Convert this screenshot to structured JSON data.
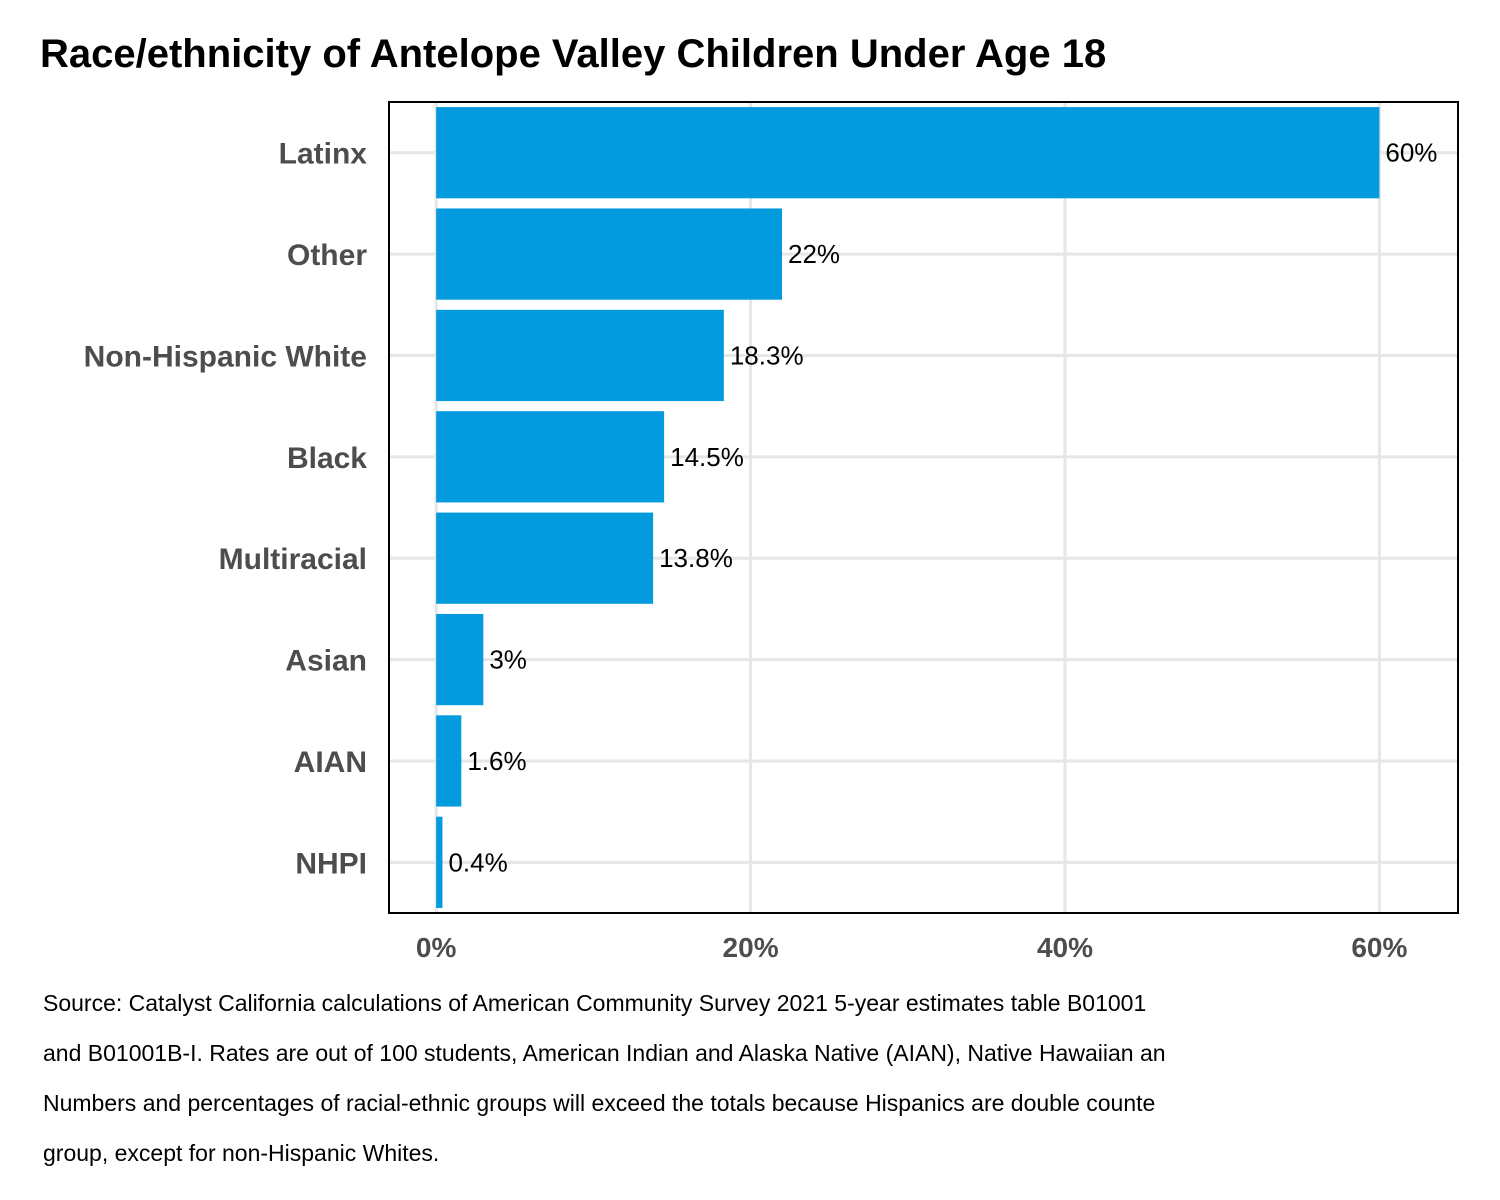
{
  "title": "Race/ethnicity of Antelope Valley Children Under Age 18",
  "source_lines": [
    "Source: Catalyst California calculations of American Community Survey 2021 5-year estimates table B01001",
    "and B01001B-I. Rates are out of 100 students, American Indian and Alaska Native (AIAN), Native Hawaiian an",
    "Numbers and percentages of racial-ethnic groups will exceed the totals because Hispanics are double counte",
    "group, except for non-Hispanic Whites."
  ],
  "chart_data": {
    "type": "bar",
    "orientation": "horizontal",
    "title": "Race/ethnicity of Antelope Valley Children Under Age 18",
    "categories": [
      "Latinx",
      "Other",
      "Non-Hispanic White",
      "Black",
      "Multiracial",
      "Asian",
      "AIAN",
      "NHPI"
    ],
    "values": [
      60,
      22,
      18.3,
      14.5,
      13.8,
      3,
      1.6,
      0.4
    ],
    "value_labels": [
      "60%",
      "22%",
      "18.3%",
      "14.5%",
      "13.8%",
      "3%",
      "1.6%",
      "0.4%"
    ],
    "x_ticks": [
      0,
      20,
      40,
      60
    ],
    "x_tick_labels": [
      "0%",
      "20%",
      "40%",
      "60%"
    ],
    "xlim": [
      -3,
      65
    ],
    "xlabel": "",
    "ylabel": "",
    "grid": true,
    "colors": {
      "bar": "#039bdd",
      "grid": "#e6e6e6",
      "frame": "#000000"
    }
  }
}
